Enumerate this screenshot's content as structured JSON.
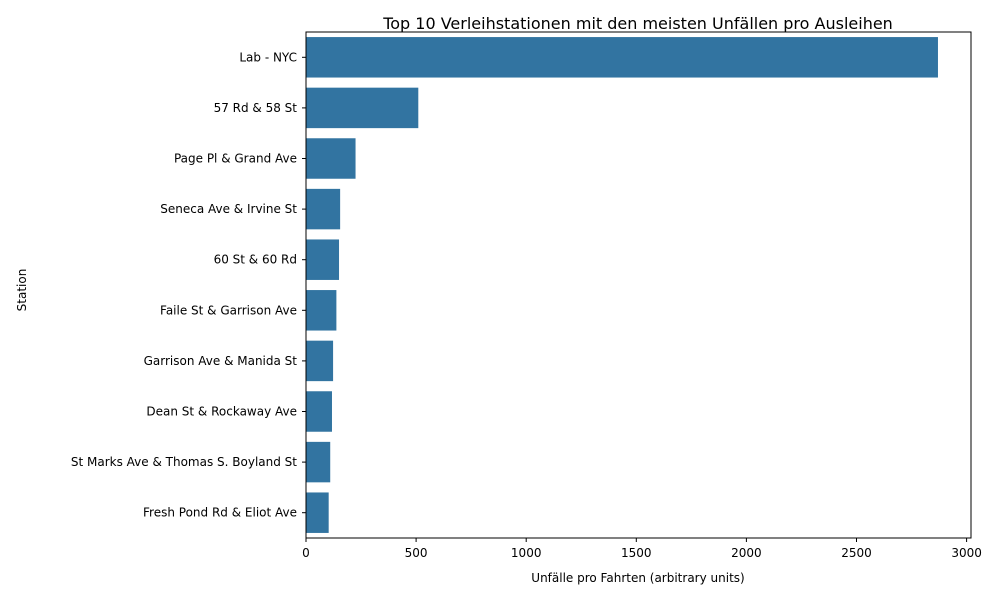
{
  "chart_data": {
    "type": "bar",
    "orientation": "horizontal",
    "title": "Top 10 Verleihstationen mit den meisten Unfällen pro Ausleihen",
    "xlabel": "Unfälle pro Fahrten (arbitrary units)",
    "ylabel": "Station",
    "categories": [
      "Lab - NYC",
      "57 Rd & 58 St",
      "Page Pl & Grand Ave",
      "Seneca Ave & Irvine St",
      "60 St & 60 Rd",
      "Faile St & Garrison Ave",
      "Garrison Ave & Manida St",
      "Dean St & Rockaway Ave",
      "St Marks Ave & Thomas S. Boyland St",
      "Fresh Pond Rd & Eliot Ave"
    ],
    "values": [
      2870,
      510,
      225,
      155,
      150,
      138,
      123,
      118,
      110,
      103
    ],
    "xlim": [
      0,
      3020
    ],
    "xticks": [
      0,
      500,
      1000,
      1500,
      2000,
      2500,
      3000
    ],
    "bar_color": "#3274a1",
    "grid": false,
    "legend": "none"
  }
}
